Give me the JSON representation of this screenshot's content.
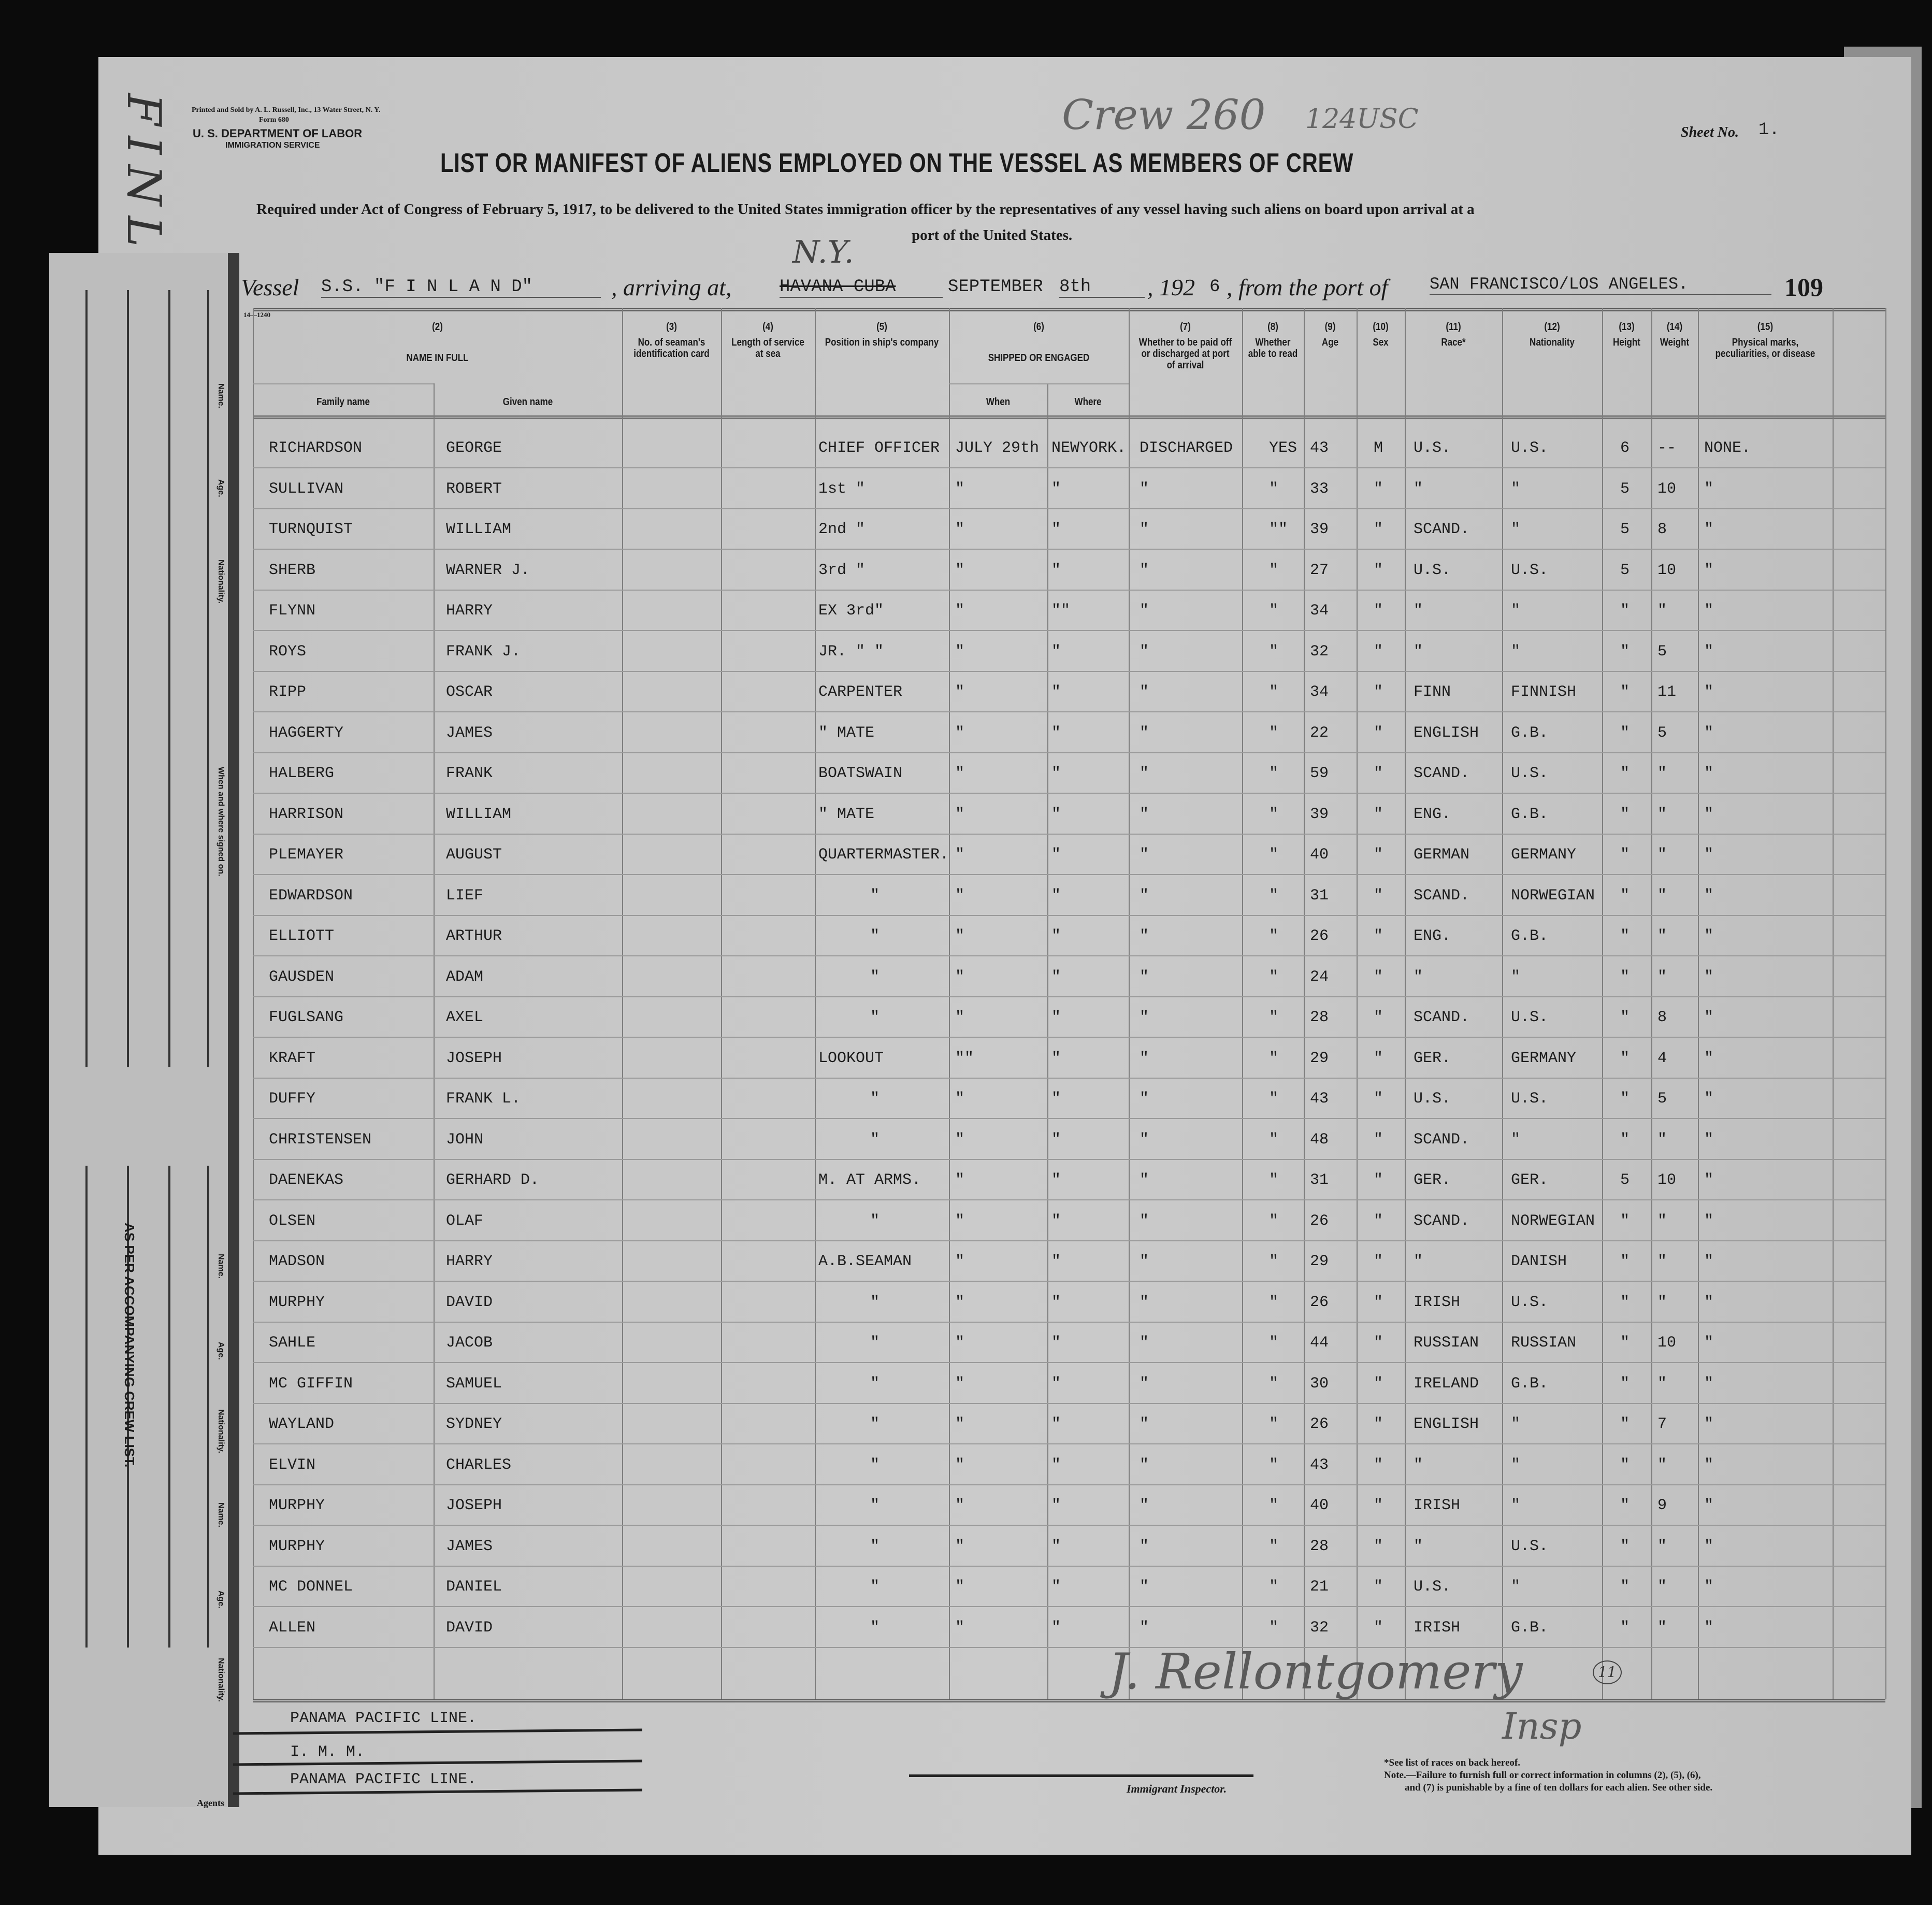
{
  "handwritten": {
    "flap_text": "FINLA",
    "crew_note": "Crew 260",
    "code_note": "124USC",
    "signature": "J. Rellontgomery",
    "signature_title": "Insp",
    "circled_number": "11"
  },
  "imprint": {
    "printer": "Printed and Sold by A. L. Russell, Inc., 13 Water Street, N. Y.",
    "form": "Form 680",
    "department": "U. S. DEPARTMENT OF LABOR",
    "service": "IMMIGRATION SERVICE",
    "form_code": "14—1240"
  },
  "sheet": {
    "label": "Sheet No.",
    "value": "1.",
    "page_number": "109"
  },
  "title": "LIST OR MANIFEST OF ALIENS EMPLOYED ON THE VESSEL AS MEMBERS OF CREW",
  "subtitle_line1": "Required under Act of Congress of February 5, 1917, to be delivered to the United States immigration officer by the representatives of any vessel having such aliens on board upon arrival at a",
  "subtitle_line2": "port of the United States.",
  "vessel_line": {
    "vessel_label": "Vessel",
    "vessel": "S.S. \"F I N L A N D\"",
    "arriving_label": ", arriving at,",
    "arriving_struck": "HAVANA  CUBA",
    "arriving_handwritten": "N.Y.",
    "date": "SEPTEMBER",
    "day": "8th",
    "year_prefix": ", 192",
    "year_digit": "6",
    "from_label": ", from the port of",
    "from_port": "SAN FRANCISCO/LOS ANGELES."
  },
  "columns": [
    {
      "num": "(2)",
      "label": "NAME IN FULL",
      "sub": [
        "Family name",
        "Given name"
      ]
    },
    {
      "num": "(3)",
      "label": "No. of seaman's identification card"
    },
    {
      "num": "(4)",
      "label": "Length of service at sea"
    },
    {
      "num": "(5)",
      "label": "Position in ship's company"
    },
    {
      "num": "(6)",
      "label": "SHIPPED OR ENGAGED",
      "sub": [
        "When",
        "Where"
      ]
    },
    {
      "num": "(7)",
      "label": "Whether to be paid off or discharged at port of arrival"
    },
    {
      "num": "(8)",
      "label": "Whether able to read"
    },
    {
      "num": "(9)",
      "label": "Age"
    },
    {
      "num": "(10)",
      "label": "Sex"
    },
    {
      "num": "(11)",
      "label": "Race*"
    },
    {
      "num": "(12)",
      "label": "Nationality"
    },
    {
      "num": "(13)",
      "label": "Height"
    },
    {
      "num": "(14)",
      "label": "Weight"
    },
    {
      "num": "(15)",
      "label": "Physical marks, peculiarities, or disease"
    }
  ],
  "rows": [
    [
      "RICHARDSON",
      "GEORGE",
      "CHIEF OFFICER",
      "JULY 29th",
      "NEWYORK.",
      "DISCHARGED",
      "YES",
      "43",
      "M",
      "U.S.",
      "U.S.",
      "6",
      "--",
      "NONE."
    ],
    [
      "SULLIVAN",
      "ROBERT",
      "1st  \"",
      "\"",
      "\"",
      "\"",
      "\"",
      "33",
      "\"",
      "\"",
      "\"",
      "5",
      "10",
      "\""
    ],
    [
      "TURNQUIST",
      "WILLIAM",
      "2nd  \"",
      "\"",
      "\"",
      "\"",
      "\"\"",
      "39",
      "\"",
      "SCAND.",
      "\"",
      "5",
      "8",
      "\""
    ],
    [
      "SHERB",
      "WARNER J.",
      "3rd  \"",
      "\"",
      "\"",
      "\"",
      "\"",
      "27",
      "\"",
      "U.S.",
      "U.S.",
      "5",
      "10",
      "\""
    ],
    [
      "FLYNN",
      "HARRY",
      "EX 3rd\"",
      "\"",
      "\"\"",
      "\"",
      "\"",
      "34",
      "\"",
      "\"",
      "\"",
      "\"",
      "\"",
      "\""
    ],
    [
      "ROYS",
      "FRANK J.",
      "JR. \" \"",
      "\"",
      "\"",
      "\"",
      "\"",
      "32",
      "\"",
      "\"",
      "\"",
      "\"",
      "5",
      "\""
    ],
    [
      "RIPP",
      "OSCAR",
      "CARPENTER",
      "\"",
      "\"",
      "\"",
      "\"",
      "34",
      "\"",
      "FINN",
      "FINNISH",
      "\"",
      "11",
      "\""
    ],
    [
      "HAGGERTY",
      "JAMES",
      "\" MATE",
      "\"",
      "\"",
      "\"",
      "\"",
      "22",
      "\"",
      "ENGLISH",
      "G.B.",
      "\"",
      "5",
      "\""
    ],
    [
      "HALBERG",
      "FRANK",
      "BOATSWAIN",
      "\"",
      "\"",
      "\"",
      "\"",
      "59",
      "\"",
      "SCAND.",
      "U.S.",
      "\"",
      "\"",
      "\""
    ],
    [
      "HARRISON",
      "WILLIAM",
      "\" MATE",
      "\"",
      "\"",
      "\"",
      "\"",
      "39",
      "\"",
      "ENG.",
      "G.B.",
      "\"",
      "\"",
      "\""
    ],
    [
      "PLEMAYER",
      "AUGUST",
      "QUARTERMASTER.",
      "\"",
      "\"",
      "\"",
      "\"",
      "40",
      "\"",
      "GERMAN",
      "GERMANY",
      "\"",
      "\"",
      "\""
    ],
    [
      "EDWARDSON",
      "LIEF",
      "\"",
      "\"",
      "\"",
      "\"",
      "\"",
      "31",
      "\"",
      "SCAND.",
      "NORWEGIAN",
      "\"",
      "\"",
      "\""
    ],
    [
      "ELLIOTT",
      "ARTHUR",
      "\"",
      "\"",
      "\"",
      "\"",
      "\"",
      "26",
      "\"",
      "ENG.",
      "G.B.",
      "\"",
      "\"",
      "\""
    ],
    [
      "GAUSDEN",
      "ADAM",
      "\"",
      "\"",
      "\"",
      "\"",
      "\"",
      "24",
      "\"",
      "\"",
      "\"",
      "\"",
      "\"",
      "\""
    ],
    [
      "FUGLSANG",
      "AXEL",
      "\"",
      "\"",
      "\"",
      "\"",
      "\"",
      "28",
      "\"",
      "SCAND.",
      "U.S.",
      "\"",
      "8",
      "\""
    ],
    [
      "KRAFT",
      "JOSEPH",
      "LOOKOUT",
      "\"\"",
      "\"",
      "\"",
      "\"",
      "29",
      "\"",
      "GER.",
      "GERMANY",
      "\"",
      "4",
      "\""
    ],
    [
      "DUFFY",
      "FRANK L.",
      "\"",
      "\"",
      "\"",
      "\"",
      "\"",
      "43",
      "\"",
      "U.S.",
      "U.S.",
      "\"",
      "5",
      "\""
    ],
    [
      "CHRISTENSEN",
      "JOHN",
      "\"",
      "\"",
      "\"",
      "\"",
      "\"",
      "48",
      "\"",
      "SCAND.",
      "\"",
      "\"",
      "\"",
      "\""
    ],
    [
      "DAENEKAS",
      "GERHARD D.",
      "M. AT ARMS.",
      "\"",
      "\"",
      "\"",
      "\"",
      "31",
      "\"",
      "GER.",
      "GER.",
      "5",
      "10",
      "\""
    ],
    [
      "OLSEN",
      "OLAF",
      "\"",
      "\"",
      "\"",
      "\"",
      "\"",
      "26",
      "\"",
      "SCAND.",
      "NORWEGIAN",
      "\"",
      "\"",
      "\""
    ],
    [
      "MADSON",
      "HARRY",
      "A.B.SEAMAN",
      "\"",
      "\"",
      "\"",
      "\"",
      "29",
      "\"",
      "\"",
      "DANISH",
      "\"",
      "\"",
      "\""
    ],
    [
      "MURPHY",
      "DAVID",
      "\"",
      "\"",
      "\"",
      "\"",
      "\"",
      "26",
      "\"",
      "IRISH",
      "U.S.",
      "\"",
      "\"",
      "\""
    ],
    [
      "SAHLE",
      "JACOB",
      "\"",
      "\"",
      "\"",
      "\"",
      "\"",
      "44",
      "\"",
      "RUSSIAN",
      "RUSSIAN",
      "\"",
      "10",
      "\""
    ],
    [
      "MC GIFFIN",
      "SAMUEL",
      "\"",
      "\"",
      "\"",
      "\"",
      "\"",
      "30",
      "\"",
      "IRELAND",
      "G.B.",
      "\"",
      "\"",
      "\""
    ],
    [
      "WAYLAND",
      "SYDNEY",
      "\"",
      "\"",
      "\"",
      "\"",
      "\"",
      "26",
      "\"",
      "ENGLISH",
      "\"",
      "\"",
      "7",
      "\""
    ],
    [
      "ELVIN",
      "CHARLES",
      "\"",
      "\"",
      "\"",
      "\"",
      "\"",
      "43",
      "\"",
      "\"",
      "\"",
      "\"",
      "\"",
      "\""
    ],
    [
      "MURPHY",
      "JOSEPH",
      "\"",
      "\"",
      "\"",
      "\"",
      "\"",
      "40",
      "\"",
      "IRISH",
      "\"",
      "\"",
      "9",
      "\""
    ],
    [
      "MURPHY",
      "JAMES",
      "\"",
      "\"",
      "\"",
      "\"",
      "\"",
      "28",
      "\"",
      "\"",
      "U.S.",
      "\"",
      "\"",
      "\""
    ],
    [
      "MC DONNEL",
      "DANIEL",
      "\"",
      "\"",
      "\"",
      "\"",
      "\"",
      "21",
      "\"",
      "U.S.",
      "\"",
      "\"",
      "\"",
      "\""
    ],
    [
      "ALLEN",
      "DAVID",
      "\"",
      "\"",
      "\"",
      "\"",
      "\"",
      "32",
      "\"",
      "IRISH",
      "G.B.",
      "\"",
      "\"",
      "\""
    ]
  ],
  "footer": {
    "agents": [
      "PANAMA PACIFIC LINE.",
      "I. M. M.",
      "PANAMA PACIFIC LINE."
    ],
    "agents_label": "Agents",
    "inspector_label": "Immigrant Inspector.",
    "note1": "*See list of races on back hereof.",
    "note2": "Note.—Failure to furnish full or correct information in columns (2), (5), (6),",
    "note3": "and (7) is punishable by a fine of ten dollars for each alien.  See other side."
  },
  "flap": {
    "labels": [
      "Name.",
      "Age.",
      "Nationality.",
      "When and where signed on.",
      "Name.",
      "Age.",
      "Nationality.",
      "Name.",
      "Age.",
      "Nationality."
    ],
    "note": "AS PER ACCOMPANYING CREW LIST."
  }
}
